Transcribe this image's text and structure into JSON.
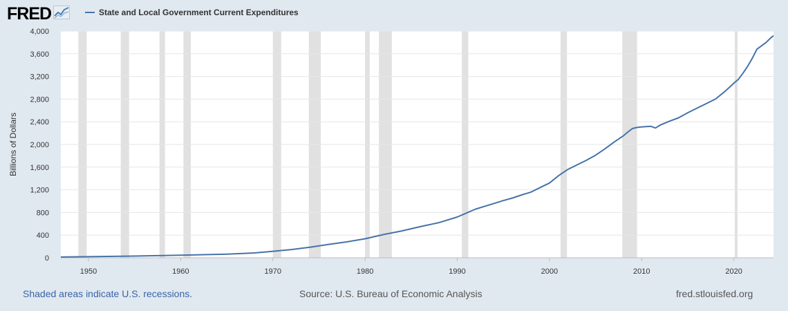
{
  "header": {
    "logo_text": "FRED",
    "logo_graph_icon": "trend-graph-icon",
    "series_label": "State and Local Government Current Expenditures"
  },
  "footer": {
    "recession_note": "Shaded areas indicate U.S. recessions.",
    "source": "Source: U.S. Bureau of Economic Analysis",
    "site": "fred.stlouisfed.org"
  },
  "colors": {
    "background": "#e1e9f0",
    "plot_background": "#ffffff",
    "series_line": "#4572a7",
    "recession_shade": "#e1e1e1",
    "gridline": "#e6e6e6"
  },
  "chart_data": {
    "type": "line",
    "title": "State and Local Government Current Expenditures",
    "xlabel": "",
    "ylabel": "Billions of Dollars",
    "xlim": [
      1947,
      2024.3
    ],
    "ylim": [
      0,
      4000
    ],
    "yticks": [
      0,
      400,
      800,
      1200,
      1600,
      2000,
      2400,
      2800,
      3200,
      3600,
      4000
    ],
    "ytick_labels": [
      "0",
      "400",
      "800",
      "1,200",
      "1,600",
      "2,000",
      "2,400",
      "2,800",
      "3,200",
      "3,600",
      "4,000"
    ],
    "xticks": [
      1950,
      1960,
      1970,
      1980,
      1990,
      2000,
      2010,
      2020
    ],
    "xtick_labels": [
      "1950",
      "1960",
      "1970",
      "1980",
      "1990",
      "2000",
      "2010",
      "2020"
    ],
    "grid": true,
    "recessions": [
      [
        1948.9,
        1949.8
      ],
      [
        1953.5,
        1954.4
      ],
      [
        1957.7,
        1958.3
      ],
      [
        1960.3,
        1961.1
      ],
      [
        1970.0,
        1970.9
      ],
      [
        1973.9,
        1975.2
      ],
      [
        1980.0,
        1980.5
      ],
      [
        1981.5,
        1982.9
      ],
      [
        1990.5,
        1991.2
      ],
      [
        2001.2,
        2001.9
      ],
      [
        2007.9,
        2009.5
      ],
      [
        2020.1,
        2020.4
      ]
    ],
    "series": [
      {
        "name": "State and Local Government Current Expenditures",
        "x": [
          1947,
          1950,
          1955,
          1960,
          1965,
          1968,
          1970,
          1972,
          1974,
          1976,
          1978,
          1980,
          1982,
          1984,
          1986,
          1988,
          1990,
          1991,
          1992,
          1993,
          1994,
          1995,
          1996,
          1997,
          1998,
          1999,
          2000,
          2001,
          2002,
          2003,
          2004,
          2005,
          2006,
          2007,
          2008,
          2008.5,
          2009,
          2009.5,
          2010,
          2011,
          2011.5,
          2012,
          2013,
          2014,
          2015,
          2016,
          2017,
          2018,
          2019,
          2019.8,
          2020,
          2020.5,
          2021,
          2021.5,
          2022,
          2022.5,
          2023,
          2023.5,
          2024,
          2024.3
        ],
        "values": [
          14,
          20,
          30,
          45,
          65,
          85,
          115,
          145,
          185,
          235,
          280,
          335,
          410,
          475,
          550,
          620,
          720,
          790,
          860,
          910,
          960,
          1010,
          1055,
          1110,
          1160,
          1240,
          1320,
          1450,
          1560,
          1640,
          1720,
          1810,
          1920,
          2040,
          2150,
          2220,
          2280,
          2300,
          2310,
          2320,
          2290,
          2340,
          2410,
          2470,
          2560,
          2640,
          2720,
          2800,
          2930,
          3050,
          3080,
          3150,
          3260,
          3380,
          3520,
          3680,
          3740,
          3800,
          3880,
          3920
        ]
      }
    ]
  }
}
